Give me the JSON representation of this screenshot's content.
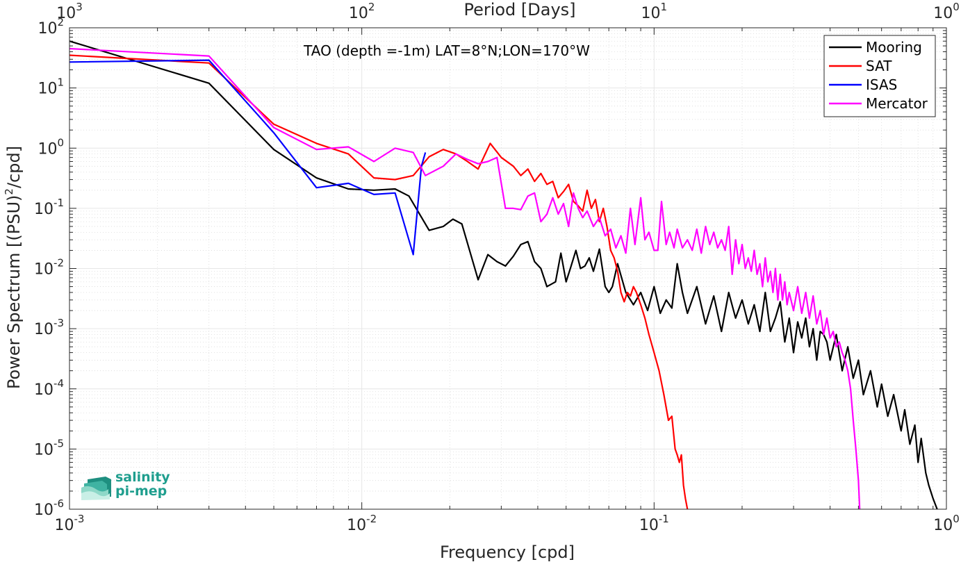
{
  "chart_data": {
    "type": "line",
    "title": "TAO (depth =-1m) LAT=8°N;LON=170°W",
    "xlabel": "Frequency [cpd]",
    "ylabel_main": "Power Spectrum [(PSU)",
    "ylabel_sup": "2",
    "ylabel_tail": "/cpd]",
    "top_xlabel": "Period [Days]",
    "xscale": "log",
    "yscale": "log",
    "xlim": [
      0.001,
      1
    ],
    "ylim": [
      1e-06,
      100
    ],
    "grid": true,
    "legend_position": "top-right",
    "x_ticks": [
      {
        "value": 0.001,
        "base": "10",
        "exp": "-3"
      },
      {
        "value": 0.01,
        "base": "10",
        "exp": "-2"
      },
      {
        "value": 0.1,
        "base": "10",
        "exp": "-1"
      },
      {
        "value": 1,
        "base": "10",
        "exp": "0"
      }
    ],
    "top_x_ticks": [
      {
        "value": 0.001,
        "base": "10",
        "exp": "3"
      },
      {
        "value": 0.01,
        "base": "10",
        "exp": "2"
      },
      {
        "value": 0.1,
        "base": "10",
        "exp": "1"
      },
      {
        "value": 1,
        "base": "10",
        "exp": "0"
      }
    ],
    "y_ticks": [
      {
        "value": 1e-06,
        "base": "10",
        "exp": "-6"
      },
      {
        "value": 1e-05,
        "base": "10",
        "exp": "-5"
      },
      {
        "value": 0.0001,
        "base": "10",
        "exp": "-4"
      },
      {
        "value": 0.001,
        "base": "10",
        "exp": "-3"
      },
      {
        "value": 0.01,
        "base": "10",
        "exp": "-2"
      },
      {
        "value": 0.1,
        "base": "10",
        "exp": "-1"
      },
      {
        "value": 1,
        "base": "10",
        "exp": "0"
      },
      {
        "value": 10,
        "base": "10",
        "exp": "1"
      },
      {
        "value": 100,
        "base": "10",
        "exp": "2"
      }
    ],
    "series": [
      {
        "name": "Mooring",
        "color": "#000000",
        "points": [
          [
            0.001,
            60
          ],
          [
            0.003,
            12
          ],
          [
            0.005,
            0.95
          ],
          [
            0.007,
            0.32
          ],
          [
            0.009,
            0.21
          ],
          [
            0.011,
            0.2
          ],
          [
            0.013,
            0.21
          ],
          [
            0.0145,
            0.16
          ],
          [
            0.017,
            0.043
          ],
          [
            0.019,
            0.05
          ],
          [
            0.0205,
            0.066
          ],
          [
            0.022,
            0.055
          ],
          [
            0.025,
            0.0065
          ],
          [
            0.027,
            0.017
          ],
          [
            0.029,
            0.013
          ],
          [
            0.031,
            0.011
          ],
          [
            0.033,
            0.016
          ],
          [
            0.035,
            0.025
          ],
          [
            0.037,
            0.028
          ],
          [
            0.039,
            0.013
          ],
          [
            0.041,
            0.01
          ],
          [
            0.043,
            0.005
          ],
          [
            0.046,
            0.006
          ],
          [
            0.048,
            0.018
          ],
          [
            0.05,
            0.006
          ],
          [
            0.052,
            0.011
          ],
          [
            0.054,
            0.02
          ],
          [
            0.056,
            0.01
          ],
          [
            0.058,
            0.011
          ],
          [
            0.06,
            0.015
          ],
          [
            0.062,
            0.009
          ],
          [
            0.065,
            0.021
          ],
          [
            0.068,
            0.005
          ],
          [
            0.07,
            0.004
          ],
          [
            0.072,
            0.005
          ],
          [
            0.075,
            0.012
          ],
          [
            0.08,
            0.004
          ],
          [
            0.085,
            0.0025
          ],
          [
            0.09,
            0.004
          ],
          [
            0.095,
            0.002
          ],
          [
            0.1,
            0.005
          ],
          [
            0.105,
            0.0018
          ],
          [
            0.11,
            0.003
          ],
          [
            0.115,
            0.0022
          ],
          [
            0.12,
            0.012
          ],
          [
            0.125,
            0.004
          ],
          [
            0.13,
            0.0018
          ],
          [
            0.14,
            0.005
          ],
          [
            0.15,
            0.0012
          ],
          [
            0.16,
            0.0035
          ],
          [
            0.17,
            0.0009
          ],
          [
            0.18,
            0.004
          ],
          [
            0.19,
            0.0015
          ],
          [
            0.2,
            0.003
          ],
          [
            0.21,
            0.0012
          ],
          [
            0.22,
            0.0025
          ],
          [
            0.23,
            0.0009
          ],
          [
            0.24,
            0.004
          ],
          [
            0.25,
            0.0009
          ],
          [
            0.26,
            0.0015
          ],
          [
            0.27,
            0.0028
          ],
          [
            0.28,
            0.0006
          ],
          [
            0.29,
            0.0015
          ],
          [
            0.3,
            0.0004
          ],
          [
            0.31,
            0.0013
          ],
          [
            0.32,
            0.0007
          ],
          [
            0.33,
            0.0015
          ],
          [
            0.34,
            0.0005
          ],
          [
            0.35,
            0.001
          ],
          [
            0.36,
            0.0003
          ],
          [
            0.37,
            0.0009
          ],
          [
            0.38,
            0.0008
          ],
          [
            0.39,
            0.0006
          ],
          [
            0.4,
            0.0003
          ],
          [
            0.42,
            0.0008
          ],
          [
            0.44,
            0.0002
          ],
          [
            0.46,
            0.0005
          ],
          [
            0.48,
            0.00015
          ],
          [
            0.5,
            0.0003
          ],
          [
            0.52,
            8e-05
          ],
          [
            0.55,
            0.0002
          ],
          [
            0.58,
            5e-05
          ],
          [
            0.6,
            0.00012
          ],
          [
            0.63,
            3.5e-05
          ],
          [
            0.66,
            8e-05
          ],
          [
            0.7,
            2e-05
          ],
          [
            0.72,
            4.5e-05
          ],
          [
            0.75,
            1.2e-05
          ],
          [
            0.78,
            2.5e-05
          ],
          [
            0.8,
            6e-06
          ],
          [
            0.82,
            1.5e-05
          ],
          [
            0.85,
            4e-06
          ],
          [
            0.87,
            2.5e-06
          ],
          [
            0.9,
            1.5e-06
          ],
          [
            0.93,
            1e-06
          ]
        ]
      },
      {
        "name": "SAT",
        "color": "#ff0000",
        "points": [
          [
            0.001,
            35
          ],
          [
            0.003,
            26
          ],
          [
            0.005,
            2.5
          ],
          [
            0.007,
            1.2
          ],
          [
            0.009,
            0.8
          ],
          [
            0.011,
            0.32
          ],
          [
            0.013,
            0.3
          ],
          [
            0.015,
            0.35
          ],
          [
            0.017,
            0.72
          ],
          [
            0.019,
            0.95
          ],
          [
            0.021,
            0.8
          ],
          [
            0.023,
            0.6
          ],
          [
            0.025,
            0.45
          ],
          [
            0.0275,
            1.2
          ],
          [
            0.03,
            0.7
          ],
          [
            0.033,
            0.5
          ],
          [
            0.035,
            0.35
          ],
          [
            0.037,
            0.45
          ],
          [
            0.039,
            0.28
          ],
          [
            0.041,
            0.38
          ],
          [
            0.043,
            0.25
          ],
          [
            0.045,
            0.28
          ],
          [
            0.047,
            0.15
          ],
          [
            0.049,
            0.19
          ],
          [
            0.051,
            0.25
          ],
          [
            0.053,
            0.13
          ],
          [
            0.055,
            0.11
          ],
          [
            0.057,
            0.09
          ],
          [
            0.059,
            0.2
          ],
          [
            0.061,
            0.1
          ],
          [
            0.063,
            0.14
          ],
          [
            0.065,
            0.06
          ],
          [
            0.067,
            0.1
          ],
          [
            0.069,
            0.05
          ],
          [
            0.071,
            0.02
          ],
          [
            0.073,
            0.015
          ],
          [
            0.075,
            0.009
          ],
          [
            0.077,
            0.004
          ],
          [
            0.079,
            0.0028
          ],
          [
            0.081,
            0.004
          ],
          [
            0.083,
            0.0035
          ],
          [
            0.085,
            0.005
          ],
          [
            0.087,
            0.004
          ],
          [
            0.09,
            0.0025
          ],
          [
            0.093,
            0.0015
          ],
          [
            0.096,
            0.0008
          ],
          [
            0.1,
            0.0004
          ],
          [
            0.104,
            0.0002
          ],
          [
            0.108,
            8e-05
          ],
          [
            0.112,
            3e-05
          ],
          [
            0.115,
            3.5e-05
          ],
          [
            0.118,
            1e-05
          ],
          [
            0.12,
            8e-06
          ],
          [
            0.122,
            6e-06
          ],
          [
            0.124,
            8e-06
          ],
          [
            0.126,
            2.5e-06
          ],
          [
            0.128,
            1.5e-06
          ],
          [
            0.13,
            1e-06
          ]
        ]
      },
      {
        "name": "ISAS",
        "color": "#0000ff",
        "points": [
          [
            0.001,
            27
          ],
          [
            0.003,
            29
          ],
          [
            0.005,
            1.8
          ],
          [
            0.007,
            0.22
          ],
          [
            0.009,
            0.26
          ],
          [
            0.011,
            0.17
          ],
          [
            0.013,
            0.18
          ],
          [
            0.015,
            0.017
          ],
          [
            0.016,
            0.5
          ],
          [
            0.0165,
            0.85
          ]
        ]
      },
      {
        "name": "Mercator",
        "color": "#ff00ff",
        "points": [
          [
            0.001,
            45
          ],
          [
            0.003,
            34
          ],
          [
            0.005,
            2.2
          ],
          [
            0.007,
            0.95
          ],
          [
            0.009,
            1.05
          ],
          [
            0.011,
            0.6
          ],
          [
            0.013,
            1.0
          ],
          [
            0.015,
            0.85
          ],
          [
            0.0165,
            0.35
          ],
          [
            0.019,
            0.5
          ],
          [
            0.021,
            0.8
          ],
          [
            0.023,
            0.65
          ],
          [
            0.025,
            0.55
          ],
          [
            0.027,
            0.6
          ],
          [
            0.029,
            0.7
          ],
          [
            0.031,
            0.1
          ],
          [
            0.033,
            0.1
          ],
          [
            0.035,
            0.095
          ],
          [
            0.037,
            0.16
          ],
          [
            0.039,
            0.18
          ],
          [
            0.041,
            0.06
          ],
          [
            0.043,
            0.08
          ],
          [
            0.045,
            0.15
          ],
          [
            0.047,
            0.08
          ],
          [
            0.049,
            0.12
          ],
          [
            0.051,
            0.05
          ],
          [
            0.053,
            0.18
          ],
          [
            0.055,
            0.1
          ],
          [
            0.057,
            0.07
          ],
          [
            0.059,
            0.09
          ],
          [
            0.062,
            0.05
          ],
          [
            0.065,
            0.07
          ],
          [
            0.068,
            0.035
          ],
          [
            0.071,
            0.045
          ],
          [
            0.074,
            0.022
          ],
          [
            0.077,
            0.035
          ],
          [
            0.08,
            0.018
          ],
          [
            0.083,
            0.1
          ],
          [
            0.086,
            0.025
          ],
          [
            0.09,
            0.15
          ],
          [
            0.093,
            0.03
          ],
          [
            0.096,
            0.04
          ],
          [
            0.1,
            0.02
          ],
          [
            0.103,
            0.02
          ],
          [
            0.106,
            0.13
          ],
          [
            0.11,
            0.025
          ],
          [
            0.113,
            0.04
          ],
          [
            0.117,
            0.022
          ],
          [
            0.12,
            0.045
          ],
          [
            0.125,
            0.022
          ],
          [
            0.13,
            0.03
          ],
          [
            0.135,
            0.02
          ],
          [
            0.14,
            0.045
          ],
          [
            0.145,
            0.018
          ],
          [
            0.15,
            0.05
          ],
          [
            0.155,
            0.025
          ],
          [
            0.16,
            0.04
          ],
          [
            0.165,
            0.022
          ],
          [
            0.17,
            0.03
          ],
          [
            0.175,
            0.02
          ],
          [
            0.18,
            0.05
          ],
          [
            0.185,
            0.008
          ],
          [
            0.19,
            0.03
          ],
          [
            0.195,
            0.012
          ],
          [
            0.2,
            0.025
          ],
          [
            0.205,
            0.01
          ],
          [
            0.21,
            0.015
          ],
          [
            0.215,
            0.009
          ],
          [
            0.22,
            0.02
          ],
          [
            0.225,
            0.008
          ],
          [
            0.23,
            0.012
          ],
          [
            0.235,
            0.005
          ],
          [
            0.24,
            0.015
          ],
          [
            0.245,
            0.006
          ],
          [
            0.25,
            0.009
          ],
          [
            0.255,
            0.004
          ],
          [
            0.26,
            0.01
          ],
          [
            0.265,
            0.003
          ],
          [
            0.27,
            0.008
          ],
          [
            0.275,
            0.003
          ],
          [
            0.28,
            0.006
          ],
          [
            0.285,
            0.0025
          ],
          [
            0.29,
            0.004
          ],
          [
            0.3,
            0.002
          ],
          [
            0.31,
            0.005
          ],
          [
            0.32,
            0.0018
          ],
          [
            0.33,
            0.004
          ],
          [
            0.34,
            0.0015
          ],
          [
            0.35,
            0.0035
          ],
          [
            0.36,
            0.0012
          ],
          [
            0.37,
            0.002
          ],
          [
            0.38,
            0.0008
          ],
          [
            0.39,
            0.0015
          ],
          [
            0.4,
            0.0007
          ],
          [
            0.41,
            0.0009
          ],
          [
            0.42,
            0.0005
          ],
          [
            0.43,
            0.0006
          ],
          [
            0.44,
            0.0004
          ],
          [
            0.45,
            0.0003
          ],
          [
            0.46,
            0.0002
          ],
          [
            0.47,
            0.0001
          ],
          [
            0.48,
            3e-05
          ],
          [
            0.49,
            1e-05
          ],
          [
            0.5,
            3e-06
          ],
          [
            0.505,
            1e-06
          ]
        ]
      }
    ]
  },
  "logo": {
    "line1": "salinity",
    "line2": "pi-mep"
  }
}
